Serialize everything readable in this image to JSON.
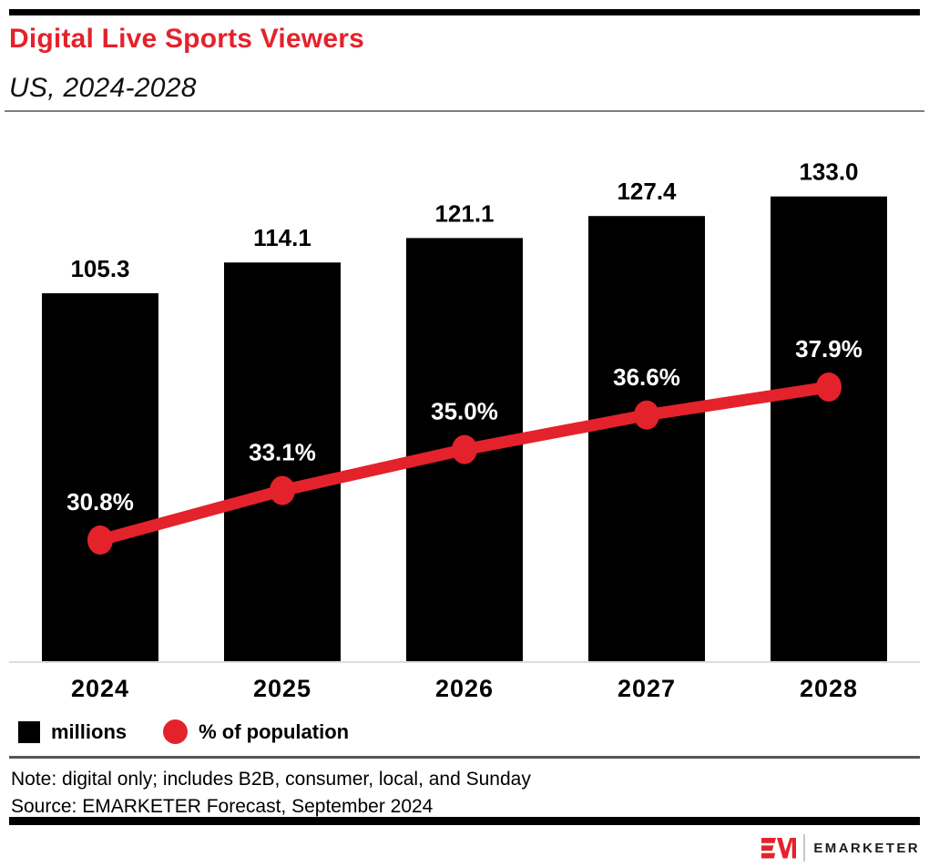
{
  "header": {
    "title": "Digital Live Sports Viewers",
    "subtitle": "US, 2024-2028"
  },
  "chart_data": {
    "type": "bar",
    "combo": "bar-with-line-overlay",
    "title": "Digital Live Sports Viewers",
    "subtitle": "US, 2024-2028",
    "categories": [
      "2024",
      "2025",
      "2026",
      "2027",
      "2028"
    ],
    "series": [
      {
        "name": "millions",
        "type": "bar",
        "color": "#000000",
        "values": [
          105.3,
          114.1,
          121.1,
          127.4,
          133.0
        ],
        "labels": [
          "105.3",
          "114.1",
          "121.1",
          "127.4",
          "133.0"
        ]
      },
      {
        "name": "% of population",
        "type": "line",
        "color": "#e4222b",
        "values": [
          30.8,
          33.1,
          35.0,
          36.6,
          37.9
        ],
        "labels": [
          "30.8%",
          "33.1%",
          "35.0%",
          "36.6%",
          "37.9%"
        ]
      }
    ],
    "xlabel": "",
    "ylabel": "",
    "bar_axis_range": [
      0,
      147
    ],
    "line_axis_range_pct": [
      24,
      44
    ],
    "grid": false,
    "legend_position": "bottom-left",
    "value_labels_shown": true
  },
  "legend": {
    "items": [
      {
        "label": "millions",
        "swatch": "square",
        "color": "#000000"
      },
      {
        "label": "% of population",
        "swatch": "circle",
        "color": "#e4222b"
      }
    ]
  },
  "footer": {
    "note": "Note: digital only; includes B2B, consumer, local, and Sunday",
    "source": "Source: EMARKETER Forecast, September 2024"
  },
  "branding": {
    "logo": "EM-logo",
    "brand_name": "EMARKETER"
  },
  "colors": {
    "accent_red": "#e4222b",
    "bar_black": "#000000",
    "axis_line_gray": "#d9dde8",
    "header_rule_gray": "#7d7d7d",
    "footer_rule_gray": "#565656"
  }
}
